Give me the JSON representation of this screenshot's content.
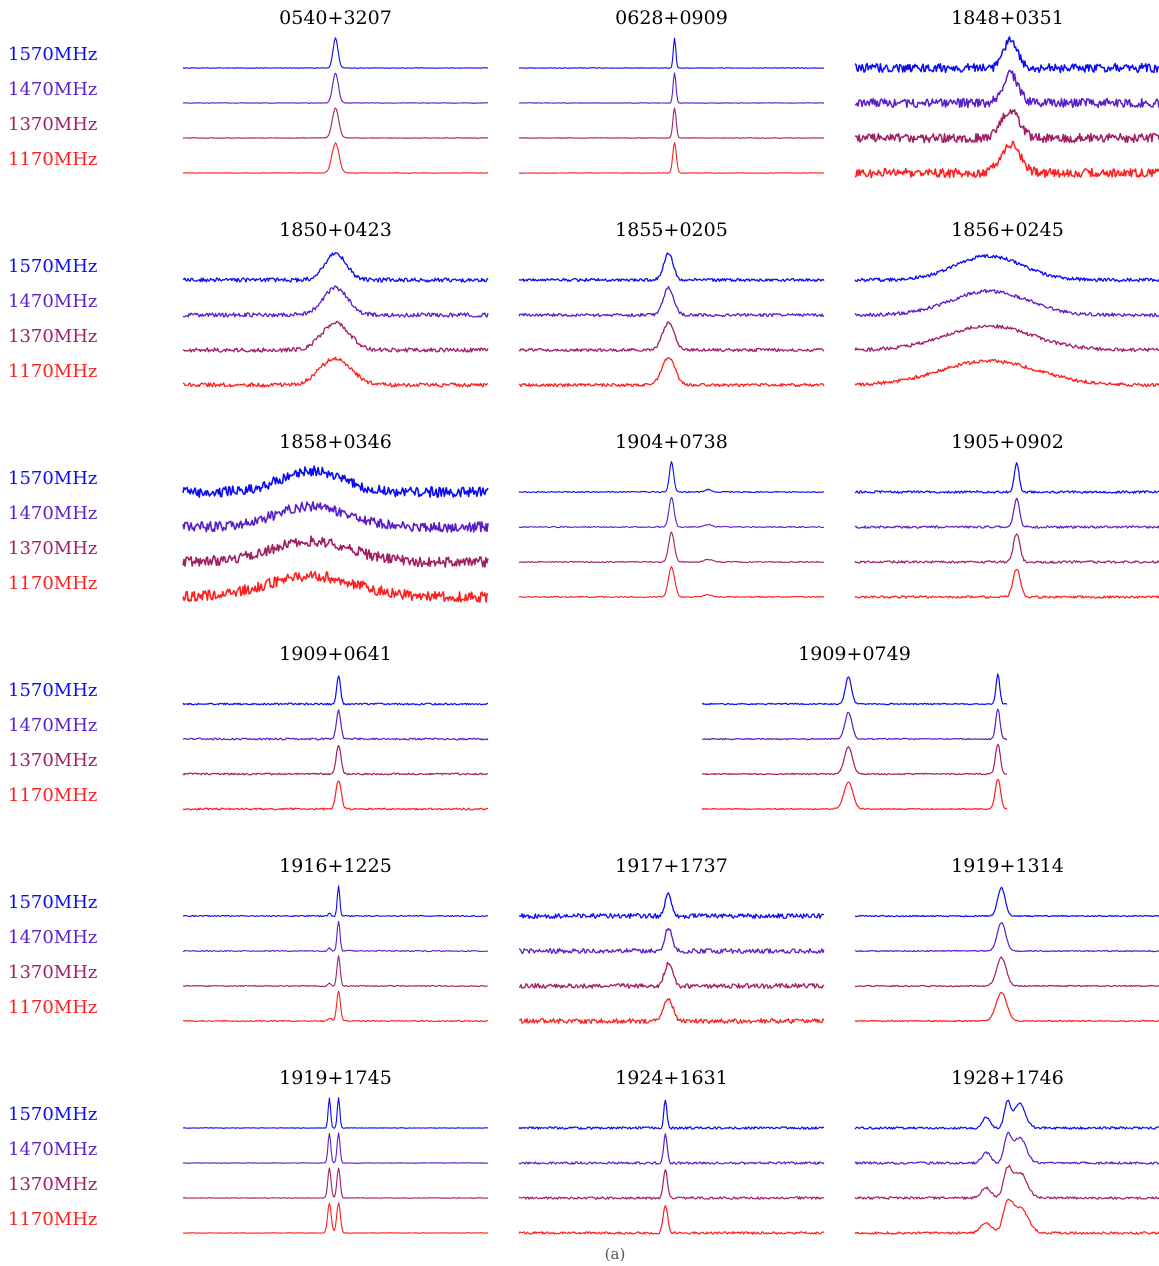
{
  "caption": "(a)",
  "chart_data": {
    "type": "line",
    "frequencies": [
      "1570MHz",
      "1470MHz",
      "1370MHz",
      "1170MHz"
    ],
    "series_colors": [
      "#0a0af5",
      "#5a1ec8",
      "#a01e64",
      "#ff1e1e"
    ],
    "panels": [
      {
        "title": "0540+3207",
        "peaks": [
          {
            "pos": 0.5,
            "w": 0.008,
            "h": 1.0
          }
        ],
        "noise": 0.01,
        "stroke": 1.1
      },
      {
        "title": "0628+0909",
        "peaks": [
          {
            "pos": 0.51,
            "w": 0.004,
            "h": 1.0
          }
        ],
        "noise": 0.01,
        "stroke": 1.1
      },
      {
        "title": "1848+0351",
        "peaks": [
          {
            "pos": 0.51,
            "w": 0.022,
            "h": 0.95
          }
        ],
        "noise": 0.15,
        "stroke": 1.5
      },
      {
        "title": "1850+0423",
        "peaks": [
          {
            "pos": 0.5,
            "w": 0.035,
            "h": 0.9
          }
        ],
        "noise": 0.07,
        "stroke": 1.3
      },
      {
        "title": "1855+0205",
        "peaks": [
          {
            "pos": 0.49,
            "w": 0.015,
            "h": 0.9
          }
        ],
        "noise": 0.05,
        "stroke": 1.3
      },
      {
        "title": "1856+0245",
        "peaks": [
          {
            "pos": 0.44,
            "w": 0.11,
            "h": 0.8
          }
        ],
        "noise": 0.06,
        "stroke": 1.3
      },
      {
        "title": "1858+0346",
        "peaks": [
          {
            "pos": 0.42,
            "w": 0.1,
            "h": 0.7
          }
        ],
        "noise": 0.17,
        "stroke": 1.6
      },
      {
        "title": "1904+0738",
        "peaks": [
          {
            "pos": 0.5,
            "w": 0.007,
            "h": 1.0
          },
          {
            "pos": 0.62,
            "w": 0.01,
            "h": 0.08
          }
        ],
        "noise": 0.02,
        "stroke": 1.1
      },
      {
        "title": "1905+0902",
        "peaks": [
          {
            "pos": 0.53,
            "w": 0.008,
            "h": 0.95
          }
        ],
        "noise": 0.04,
        "stroke": 1.2
      },
      {
        "title": "1909+0641",
        "peaks": [
          {
            "pos": 0.51,
            "w": 0.006,
            "h": 0.95
          }
        ],
        "noise": 0.03,
        "stroke": 1.2
      },
      {
        "title": "1909+0749",
        "peaks": [
          {
            "pos": 0.48,
            "w": 0.01,
            "h": 0.9
          },
          {
            "pos": 0.97,
            "w": 0.006,
            "h": 1.0
          }
        ],
        "noise": 0.02,
        "stroke": 1.2
      },
      {
        "title": "1916+1225",
        "peaks": [
          {
            "pos": 0.51,
            "w": 0.004,
            "h": 1.0
          },
          {
            "pos": 0.48,
            "w": 0.004,
            "h": 0.1
          }
        ],
        "noise": 0.02,
        "stroke": 1.1
      },
      {
        "title": "1917+1737",
        "peaks": [
          {
            "pos": 0.49,
            "w": 0.01,
            "h": 0.75
          }
        ],
        "noise": 0.08,
        "stroke": 1.3
      },
      {
        "title": "1919+1314",
        "peaks": [
          {
            "pos": 0.48,
            "w": 0.012,
            "h": 0.95
          }
        ],
        "noise": 0.02,
        "stroke": 1.2
      },
      {
        "title": "1919+1745",
        "peaks": [
          {
            "pos": 0.48,
            "w": 0.004,
            "h": 1.0
          },
          {
            "pos": 0.51,
            "w": 0.004,
            "h": 1.0
          }
        ],
        "noise": 0.01,
        "stroke": 1.1
      },
      {
        "title": "1924+1631",
        "peaks": [
          {
            "pos": 0.48,
            "w": 0.005,
            "h": 0.95
          }
        ],
        "noise": 0.04,
        "stroke": 1.2
      },
      {
        "title": "1928+1746",
        "peaks": [
          {
            "pos": 0.43,
            "w": 0.012,
            "h": 0.35
          },
          {
            "pos": 0.5,
            "w": 0.01,
            "h": 0.85
          },
          {
            "pos": 0.54,
            "w": 0.018,
            "h": 0.85
          }
        ],
        "noise": 0.04,
        "stroke": 1.2
      }
    ]
  }
}
